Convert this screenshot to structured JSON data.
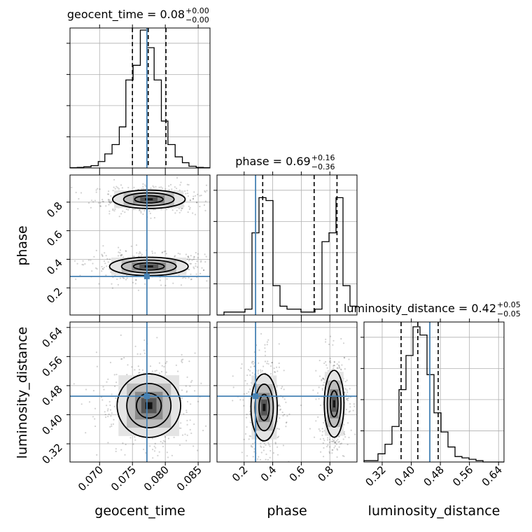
{
  "chart_data": {
    "type": "corner",
    "parameters": [
      "geocent_time",
      "phase",
      "luminosity_distance"
    ],
    "panel_titles": [
      {
        "name": "geocent_time",
        "value": "0.08",
        "plus": "+0.00",
        "minus": "−0.00"
      },
      {
        "name": "phase",
        "value": "0.69",
        "plus": "+0.16",
        "minus": "−0.36"
      },
      {
        "name": "luminosity_distance",
        "value": "0.42",
        "plus": "+0.05",
        "minus": "−0.05"
      }
    ],
    "axis_labels": {
      "x": [
        "geocent_time",
        "phase",
        "luminosity_distance"
      ],
      "y": [
        "phase",
        "luminosity_distance"
      ]
    },
    "ranges": {
      "geocent_time": [
        0.0655,
        0.0868
      ],
      "phase": [
        0.01,
        0.99
      ],
      "luminosity_distance": [
        0.27,
        0.655
      ]
    },
    "ticks": {
      "geocent_time": [
        "0.070",
        "0.075",
        "0.080",
        "0.085"
      ],
      "phase": [
        "0.2",
        "0.4",
        "0.6",
        "0.8"
      ],
      "luminosity_distance": [
        "0.32",
        "0.40",
        "0.48",
        "0.56",
        "0.64"
      ]
    },
    "truths": {
      "geocent_time": 0.0772,
      "phase": 0.28,
      "luminosity_distance": 0.451
    },
    "quantiles": {
      "geocent_time": [
        0.075,
        0.0774,
        0.0801
      ],
      "phase": [
        0.33,
        0.69,
        0.85
      ],
      "luminosity_distance": [
        0.372,
        0.418,
        0.474
      ]
    },
    "histograms": {
      "geocent_time": {
        "edges": [
          0.0655,
          0.0666,
          0.0676,
          0.0687,
          0.0698,
          0.0708,
          0.0719,
          0.073,
          0.074,
          0.0751,
          0.0762,
          0.0772,
          0.0783,
          0.0794,
          0.0804,
          0.0815,
          0.0826,
          0.0836,
          0.0847,
          0.0858,
          0.0868
        ],
        "counts": [
          1,
          2,
          4,
          8,
          22,
          48,
          80,
          140,
          300,
          350,
          470,
          410,
          300,
          160,
          80,
          38,
          18,
          6,
          2,
          1
        ],
        "ylim": [
          0,
          470
        ]
      },
      "phase": {
        "edges": [
          0.01,
          0.059,
          0.108,
          0.157,
          0.206,
          0.255,
          0.304,
          0.353,
          0.402,
          0.451,
          0.5,
          0.549,
          0.598,
          0.647,
          0.696,
          0.745,
          0.794,
          0.843,
          0.892,
          0.941,
          0.99
        ],
        "counts": [
          0,
          1,
          1,
          1,
          2,
          28,
          40,
          39,
          10,
          3,
          2,
          2,
          1,
          1,
          2,
          25,
          28,
          40,
          10,
          3
        ],
        "ylim": [
          0,
          47
        ]
      },
      "luminosity_distance": {
        "edges": [
          0.27,
          0.2893,
          0.3085,
          0.3278,
          0.347,
          0.3663,
          0.3855,
          0.4048,
          0.424,
          0.4433,
          0.4625,
          0.4818,
          0.501,
          0.5203,
          0.5395,
          0.5588,
          0.578,
          0.5973,
          0.6165,
          0.6358,
          0.655
        ],
        "counts": [
          1,
          1,
          6,
          13,
          26,
          53,
          78,
          99,
          93,
          64,
          36,
          22,
          11,
          4,
          3,
          2,
          1,
          0,
          0,
          0
        ],
        "ylim": [
          0,
          101
        ]
      }
    },
    "point_density": [
      {
        "x": 0.0775,
        "y": 0.82,
        "sx": 0.0022,
        "sy": 0.045,
        "n": 260
      },
      {
        "x": 0.0775,
        "y": 0.35,
        "sx": 0.0022,
        "sy": 0.045,
        "n": 260
      }
    ]
  }
}
